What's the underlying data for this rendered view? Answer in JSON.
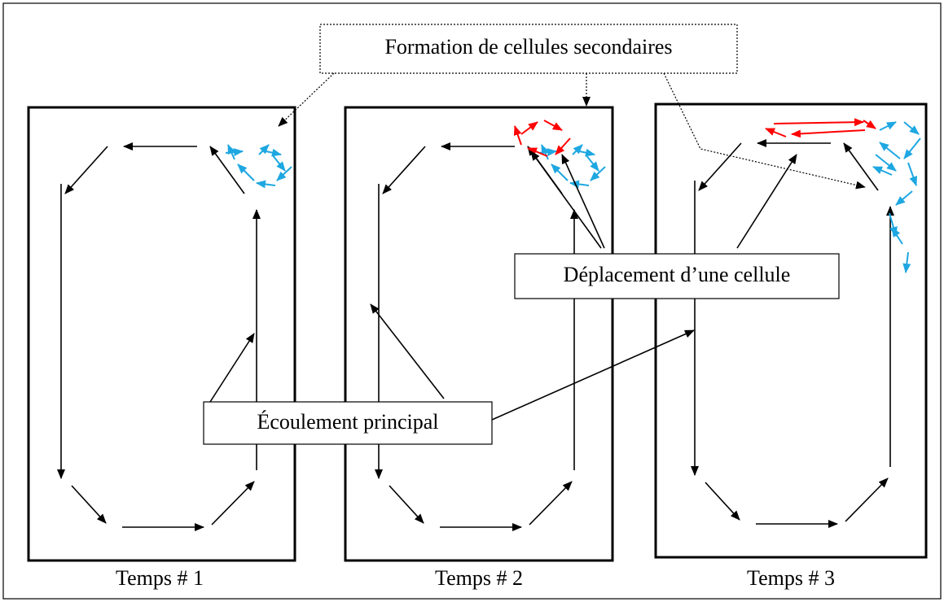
{
  "callouts": {
    "secondary": "Formation de cellules secondaires",
    "displacement": "Déplacement d’une cellule",
    "main": "Écoulement principal"
  },
  "panels": [
    {
      "label": "Temps # 1"
    },
    {
      "label": "Temps # 2"
    },
    {
      "label": "Temps # 3"
    }
  ]
}
